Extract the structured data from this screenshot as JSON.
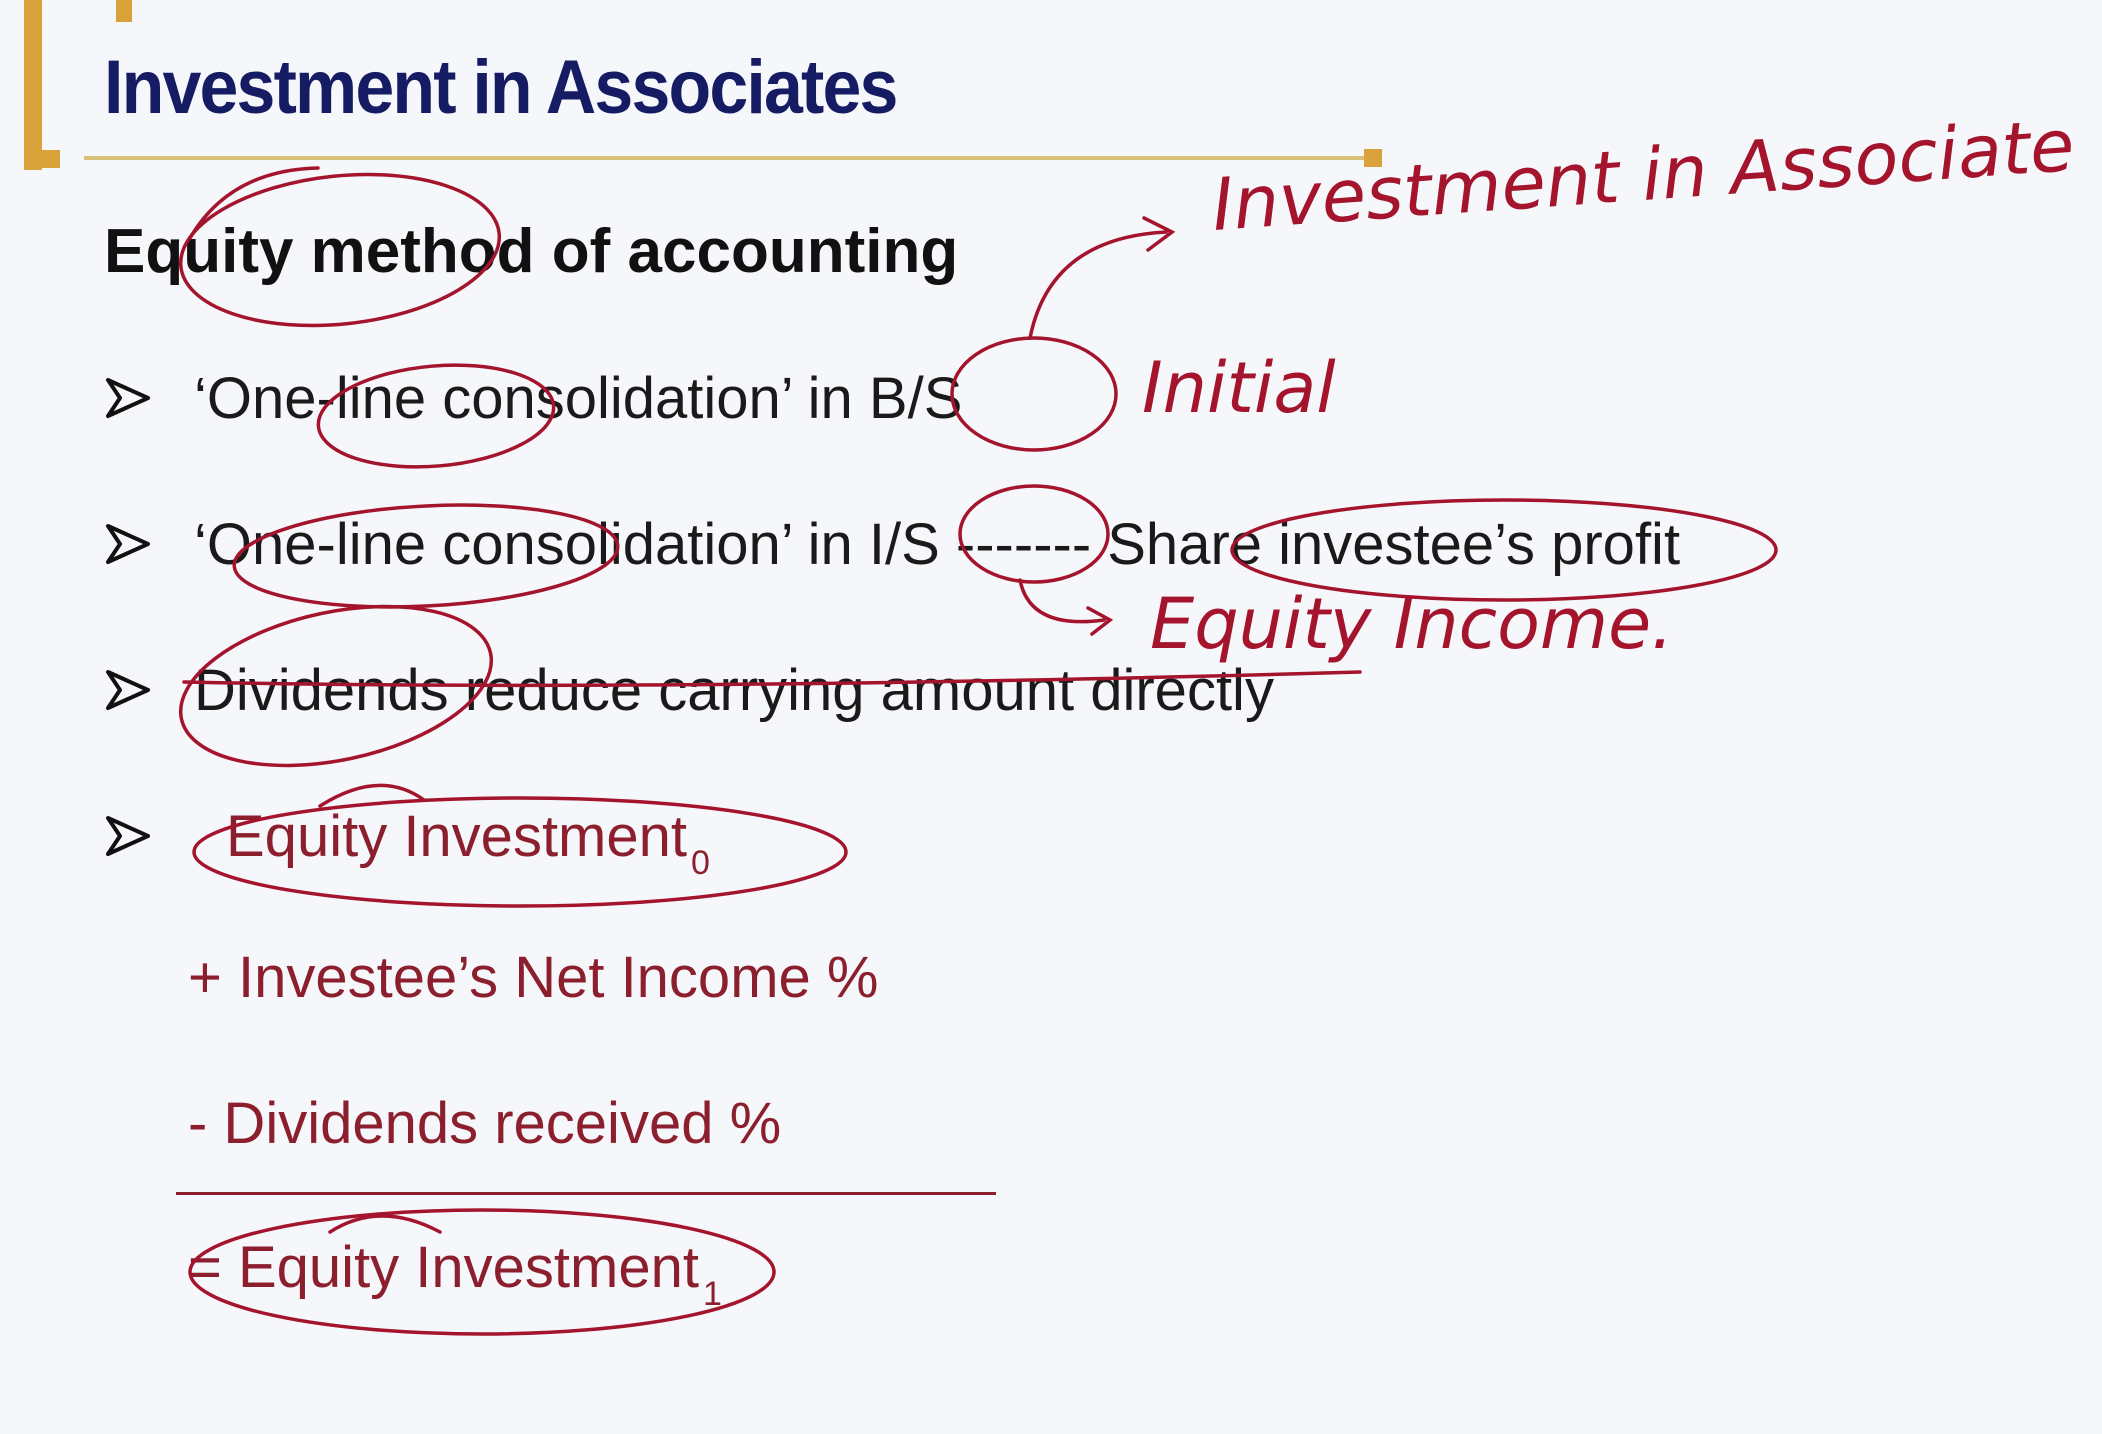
{
  "slide": {
    "title": "Investment in Associates",
    "subtitle": "Equity method of accounting",
    "bullets": [
      {
        "text": "‘One-line consolidation’ in B/S"
      },
      {
        "text": "‘One-line consolidation’ in I/S ------- Share investee’s profit"
      },
      {
        "text": "Dividends reduce carrying amount directly"
      }
    ],
    "formula": {
      "line1": "Equity Investment",
      "line1_sub": "0",
      "line2": "+ Investee’s Net Income %",
      "line3": "- Dividends received %",
      "line4": "= Equity Investment",
      "line4_sub": "1"
    }
  },
  "annotations": {
    "note1": "Investment in Associate",
    "note2": "Initial",
    "note3": "Equity Income.",
    "ink_color": "#a4142d"
  },
  "colors": {
    "title": "#151c63",
    "accent_gold": "#d9a23a",
    "formula_red": "#8b1f2e",
    "background": "#f6f7fa"
  }
}
